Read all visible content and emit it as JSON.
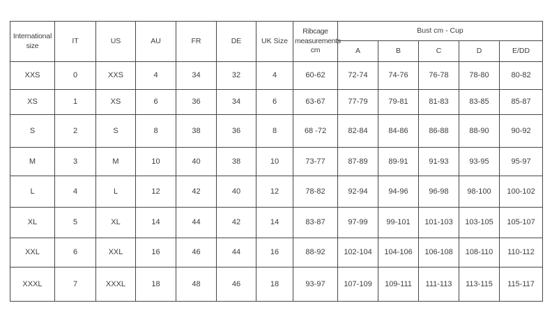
{
  "chart_data": {
    "type": "table",
    "title": "",
    "header": {
      "columns": [
        "International size",
        "IT",
        "US",
        "AU",
        "FR",
        "DE",
        "UK Size",
        "Ribcage measurements cm"
      ],
      "group": {
        "label": "Bust cm - Cup",
        "subcolumns": [
          "A",
          "B",
          "C",
          "D",
          "E/DD"
        ]
      }
    },
    "rows": [
      [
        "XXS",
        "0",
        "XXS",
        "4",
        "34",
        "32",
        "4",
        "60-62",
        "72-74",
        "74-76",
        "76-78",
        "78-80",
        "80-82"
      ],
      [
        "XS",
        "1",
        "XS",
        "6",
        "36",
        "34",
        "6",
        "63-67",
        "77-79",
        "79-81",
        "81-83",
        "83-85",
        "85-87"
      ],
      [
        "S",
        "2",
        "S",
        "8",
        "38",
        "36",
        "8",
        "68 -72",
        "82-84",
        "84-86",
        "86-88",
        "88-90",
        "90-92"
      ],
      [
        "M",
        "3",
        "M",
        "10",
        "40",
        "38",
        "10",
        "73-77",
        "87-89",
        "89-91",
        "91-93",
        "93-95",
        "95-97"
      ],
      [
        "L",
        "4",
        "L",
        "12",
        "42",
        "40",
        "12",
        "78-82",
        "92-94",
        "94-96",
        "96-98",
        "98-100",
        "100-102"
      ],
      [
        "XL",
        "5",
        "XL",
        "14",
        "44",
        "42",
        "14",
        "83-87",
        "97-99",
        "99-101",
        "101-103",
        "103-105",
        "105-107"
      ],
      [
        "XXL",
        "6",
        "XXL",
        "16",
        "46",
        "44",
        "16",
        "88-92",
        "102-104",
        "104-106",
        "106-108",
        "108-110",
        "110-112"
      ],
      [
        "XXXL",
        "7",
        "XXXL",
        "18",
        "48",
        "46",
        "18",
        "93-97",
        "107-109",
        "109-111",
        "111-113",
        "113-115",
        "115-117"
      ]
    ],
    "layout": {
      "border_color": "#454545",
      "text_color": "#3c3c3c",
      "background": "#ffffff"
    }
  }
}
